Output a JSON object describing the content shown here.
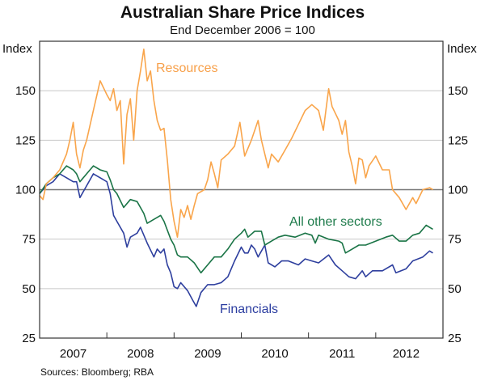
{
  "chart_data": {
    "type": "line",
    "title": "Australian Share Price Indices",
    "subtitle": "End December 2006 = 100",
    "ylabel_left": "Index",
    "ylabel_right": "Index",
    "ylim": [
      25,
      175
    ],
    "yticks": [
      25,
      50,
      75,
      100,
      125,
      150
    ],
    "xlim": [
      2007.0,
      2013.0
    ],
    "xtick_boundaries": [
      2008,
      2009,
      2010,
      2011,
      2012
    ],
    "xtick_labels": [
      "2007",
      "2008",
      "2009",
      "2010",
      "2011",
      "2012"
    ],
    "reference_line": 100,
    "grid": true,
    "source": "Sources: Bloomberg; RBA",
    "series": [
      {
        "name": "Resources",
        "color": "#F9A54B",
        "label_color": "#F7A04A",
        "points": [
          [
            2007.0,
            97
          ],
          [
            2007.05,
            95
          ],
          [
            2007.1,
            103
          ],
          [
            2007.2,
            106
          ],
          [
            2007.3,
            110
          ],
          [
            2007.4,
            118
          ],
          [
            2007.45,
            125
          ],
          [
            2007.5,
            134
          ],
          [
            2007.55,
            118
          ],
          [
            2007.6,
            111
          ],
          [
            2007.65,
            120
          ],
          [
            2007.7,
            125
          ],
          [
            2007.8,
            140
          ],
          [
            2007.9,
            155
          ],
          [
            2008.0,
            148
          ],
          [
            2008.05,
            145
          ],
          [
            2008.1,
            151
          ],
          [
            2008.15,
            140
          ],
          [
            2008.2,
            145
          ],
          [
            2008.25,
            113
          ],
          [
            2008.3,
            138
          ],
          [
            2008.35,
            146
          ],
          [
            2008.4,
            125
          ],
          [
            2008.45,
            150
          ],
          [
            2008.5,
            160
          ],
          [
            2008.55,
            171
          ],
          [
            2008.6,
            155
          ],
          [
            2008.65,
            160
          ],
          [
            2008.7,
            145
          ],
          [
            2008.75,
            135
          ],
          [
            2008.8,
            130
          ],
          [
            2008.85,
            131
          ],
          [
            2008.9,
            115
          ],
          [
            2008.95,
            95
          ],
          [
            2009.0,
            84
          ],
          [
            2009.05,
            76
          ],
          [
            2009.1,
            90
          ],
          [
            2009.15,
            86
          ],
          [
            2009.2,
            92
          ],
          [
            2009.25,
            85
          ],
          [
            2009.3,
            92
          ],
          [
            2009.35,
            98
          ],
          [
            2009.45,
            100
          ],
          [
            2009.5,
            105
          ],
          [
            2009.55,
            114
          ],
          [
            2009.6,
            108
          ],
          [
            2009.65,
            101
          ],
          [
            2009.7,
            115
          ],
          [
            2009.8,
            118
          ],
          [
            2009.9,
            122
          ],
          [
            2009.98,
            134
          ],
          [
            2010.05,
            117
          ],
          [
            2010.15,
            125
          ],
          [
            2010.25,
            135
          ],
          [
            2010.3,
            125
          ],
          [
            2010.4,
            111
          ],
          [
            2010.45,
            118
          ],
          [
            2010.55,
            114
          ],
          [
            2010.65,
            120
          ],
          [
            2010.75,
            126
          ],
          [
            2010.85,
            133
          ],
          [
            2010.95,
            140
          ],
          [
            2011.05,
            143
          ],
          [
            2011.15,
            140
          ],
          [
            2011.22,
            130
          ],
          [
            2011.3,
            151
          ],
          [
            2011.35,
            142
          ],
          [
            2011.45,
            135
          ],
          [
            2011.5,
            128
          ],
          [
            2011.55,
            135
          ],
          [
            2011.6,
            119
          ],
          [
            2011.65,
            112
          ],
          [
            2011.7,
            103
          ],
          [
            2011.75,
            116
          ],
          [
            2011.8,
            115
          ],
          [
            2011.85,
            106
          ],
          [
            2011.9,
            112
          ],
          [
            2012.0,
            117
          ],
          [
            2012.1,
            110
          ],
          [
            2012.2,
            110
          ],
          [
            2012.25,
            100
          ],
          [
            2012.35,
            96
          ],
          [
            2012.45,
            90
          ],
          [
            2012.55,
            96
          ],
          [
            2012.6,
            93
          ],
          [
            2012.7,
            100
          ],
          [
            2012.8,
            101
          ],
          [
            2012.85,
            100
          ]
        ]
      },
      {
        "name": "All other sectors",
        "color": "#1A7446",
        "label_color": "#1E7B4B",
        "points": [
          [
            2007.0,
            98
          ],
          [
            2007.1,
            103
          ],
          [
            2007.2,
            106
          ],
          [
            2007.3,
            108
          ],
          [
            2007.4,
            112
          ],
          [
            2007.5,
            110
          ],
          [
            2007.55,
            108
          ],
          [
            2007.6,
            104
          ],
          [
            2007.7,
            108
          ],
          [
            2007.8,
            112
          ],
          [
            2007.9,
            110
          ],
          [
            2008.0,
            109
          ],
          [
            2008.05,
            105
          ],
          [
            2008.1,
            100
          ],
          [
            2008.15,
            98
          ],
          [
            2008.25,
            91
          ],
          [
            2008.35,
            95
          ],
          [
            2008.45,
            94
          ],
          [
            2008.55,
            88
          ],
          [
            2008.6,
            83
          ],
          [
            2008.7,
            85
          ],
          [
            2008.8,
            87
          ],
          [
            2008.85,
            84
          ],
          [
            2008.95,
            75
          ],
          [
            2009.0,
            72
          ],
          [
            2009.05,
            67
          ],
          [
            2009.1,
            66
          ],
          [
            2009.2,
            66
          ],
          [
            2009.3,
            63
          ],
          [
            2009.4,
            58
          ],
          [
            2009.5,
            62
          ],
          [
            2009.6,
            66
          ],
          [
            2009.7,
            66
          ],
          [
            2009.8,
            70
          ],
          [
            2009.9,
            75
          ],
          [
            2010.0,
            78
          ],
          [
            2010.05,
            80
          ],
          [
            2010.1,
            76
          ],
          [
            2010.2,
            79
          ],
          [
            2010.3,
            79
          ],
          [
            2010.35,
            72
          ],
          [
            2010.45,
            74
          ],
          [
            2010.55,
            76
          ],
          [
            2010.65,
            77
          ],
          [
            2010.8,
            76
          ],
          [
            2010.95,
            78
          ],
          [
            2011.05,
            77
          ],
          [
            2011.1,
            73
          ],
          [
            2011.15,
            77
          ],
          [
            2011.3,
            75
          ],
          [
            2011.45,
            74
          ],
          [
            2011.5,
            73
          ],
          [
            2011.55,
            68
          ],
          [
            2011.65,
            70
          ],
          [
            2011.75,
            72
          ],
          [
            2011.85,
            72
          ],
          [
            2012.0,
            74
          ],
          [
            2012.15,
            76
          ],
          [
            2012.25,
            77
          ],
          [
            2012.35,
            74
          ],
          [
            2012.45,
            74
          ],
          [
            2012.55,
            77
          ],
          [
            2012.65,
            78
          ],
          [
            2012.75,
            82
          ],
          [
            2012.85,
            80
          ]
        ]
      },
      {
        "name": "Financials",
        "color": "#2E3F9E",
        "label_color": "#2B3DA0",
        "points": [
          [
            2007.0,
            98
          ],
          [
            2007.1,
            102
          ],
          [
            2007.2,
            104
          ],
          [
            2007.3,
            108
          ],
          [
            2007.4,
            106
          ],
          [
            2007.5,
            104
          ],
          [
            2007.55,
            104
          ],
          [
            2007.6,
            96
          ],
          [
            2007.7,
            102
          ],
          [
            2007.8,
            108
          ],
          [
            2007.9,
            106
          ],
          [
            2008.0,
            104
          ],
          [
            2008.05,
            98
          ],
          [
            2008.1,
            87
          ],
          [
            2008.15,
            84
          ],
          [
            2008.25,
            78
          ],
          [
            2008.3,
            71
          ],
          [
            2008.35,
            76
          ],
          [
            2008.45,
            78
          ],
          [
            2008.5,
            81
          ],
          [
            2008.6,
            73
          ],
          [
            2008.7,
            66
          ],
          [
            2008.75,
            70
          ],
          [
            2008.8,
            68
          ],
          [
            2008.85,
            70
          ],
          [
            2008.9,
            62
          ],
          [
            2008.95,
            58
          ],
          [
            2009.0,
            51
          ],
          [
            2009.05,
            50
          ],
          [
            2009.1,
            53
          ],
          [
            2009.2,
            49
          ],
          [
            2009.28,
            44
          ],
          [
            2009.33,
            41
          ],
          [
            2009.4,
            48
          ],
          [
            2009.5,
            52
          ],
          [
            2009.6,
            52
          ],
          [
            2009.7,
            53
          ],
          [
            2009.8,
            56
          ],
          [
            2009.9,
            64
          ],
          [
            2010.0,
            71
          ],
          [
            2010.05,
            68
          ],
          [
            2010.1,
            68
          ],
          [
            2010.15,
            72
          ],
          [
            2010.2,
            70
          ],
          [
            2010.25,
            66
          ],
          [
            2010.35,
            72
          ],
          [
            2010.4,
            63
          ],
          [
            2010.5,
            61
          ],
          [
            2010.6,
            64
          ],
          [
            2010.7,
            64
          ],
          [
            2010.85,
            62
          ],
          [
            2010.95,
            65
          ],
          [
            2011.05,
            64
          ],
          [
            2011.15,
            63
          ],
          [
            2011.3,
            67
          ],
          [
            2011.4,
            62
          ],
          [
            2011.5,
            59
          ],
          [
            2011.6,
            56
          ],
          [
            2011.7,
            55
          ],
          [
            2011.8,
            59
          ],
          [
            2011.85,
            56
          ],
          [
            2011.95,
            59
          ],
          [
            2012.1,
            59
          ],
          [
            2012.25,
            62
          ],
          [
            2012.3,
            58
          ],
          [
            2012.45,
            60
          ],
          [
            2012.55,
            64
          ],
          [
            2012.7,
            66
          ],
          [
            2012.8,
            69
          ],
          [
            2012.85,
            68
          ]
        ]
      }
    ]
  }
}
